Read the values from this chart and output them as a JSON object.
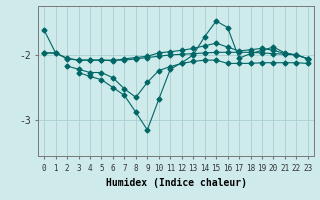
{
  "background_color": "#ceeaea",
  "grid_color": "#aacece",
  "line_color": "#006666",
  "xlabel": "Humidex (Indice chaleur)",
  "xlim": [
    -0.5,
    23.5
  ],
  "ylim": [
    -3.55,
    -1.25
  ],
  "yticks": [
    -3,
    -2
  ],
  "xticks": [
    0,
    1,
    2,
    3,
    4,
    5,
    6,
    7,
    8,
    9,
    10,
    11,
    12,
    13,
    14,
    15,
    16,
    17,
    18,
    19,
    20,
    21,
    22,
    23
  ],
  "series1_x": [
    0,
    1,
    2,
    3,
    4,
    5,
    6,
    7,
    8,
    9,
    10,
    11,
    12,
    13,
    14,
    15,
    16,
    17,
    18,
    19,
    20,
    21,
    22,
    23
  ],
  "series1_y": [
    -1.97,
    -1.97,
    -2.05,
    -2.08,
    -2.08,
    -2.08,
    -2.08,
    -2.08,
    -2.06,
    -2.04,
    -2.02,
    -2.0,
    -1.99,
    -1.98,
    -1.97,
    -1.96,
    -1.96,
    -1.96,
    -1.96,
    -1.97,
    -1.98,
    -1.99,
    -2.0,
    -2.06
  ],
  "series2_x": [
    0,
    1,
    2,
    3,
    4,
    5,
    6,
    7,
    8,
    9,
    10,
    11,
    12,
    13,
    14,
    15,
    16,
    17,
    18,
    19,
    20,
    21,
    22,
    23
  ],
  "series2_y": [
    -1.97,
    -1.97,
    -2.06,
    -2.08,
    -2.08,
    -2.08,
    -2.09,
    -2.06,
    -2.04,
    -2.02,
    -1.97,
    -1.95,
    -1.93,
    -1.9,
    -1.86,
    -1.82,
    -1.88,
    -1.94,
    -1.92,
    -1.9,
    -1.93,
    -1.98,
    -2.0,
    -2.06
  ],
  "series3_x": [
    2,
    3,
    4,
    5,
    6,
    7,
    8,
    9,
    10,
    11,
    12,
    13,
    14,
    15,
    16,
    17,
    18,
    19,
    20,
    21,
    22,
    23
  ],
  "series3_y": [
    -2.17,
    -2.22,
    -2.27,
    -2.27,
    -2.35,
    -2.52,
    -2.65,
    -2.42,
    -2.24,
    -2.18,
    -2.13,
    -2.1,
    -2.08,
    -2.08,
    -2.13,
    -2.13,
    -2.13,
    -2.12,
    -2.12,
    -2.12,
    -2.12,
    -2.13
  ],
  "series4_x": [
    3,
    4,
    5,
    6,
    7,
    8,
    9,
    10,
    11,
    12,
    13,
    14,
    15,
    16,
    17,
    18,
    19,
    20,
    21,
    22,
    23
  ],
  "series4_y": [
    -2.27,
    -2.33,
    -2.38,
    -2.5,
    -2.62,
    -2.88,
    -3.15,
    -2.68,
    -2.22,
    -2.12,
    -2.0,
    -1.72,
    -1.48,
    -1.58,
    -2.05,
    -1.98,
    -1.93,
    -1.88,
    -1.97,
    -2.0,
    -2.06
  ],
  "series0_x": [
    0
  ],
  "series0_y": [
    -1.62
  ],
  "markersize": 2.5,
  "linewidth": 0.8,
  "xlabel_fontsize": 7,
  "tick_fontsize": 5.5,
  "ytick_fontsize": 7
}
